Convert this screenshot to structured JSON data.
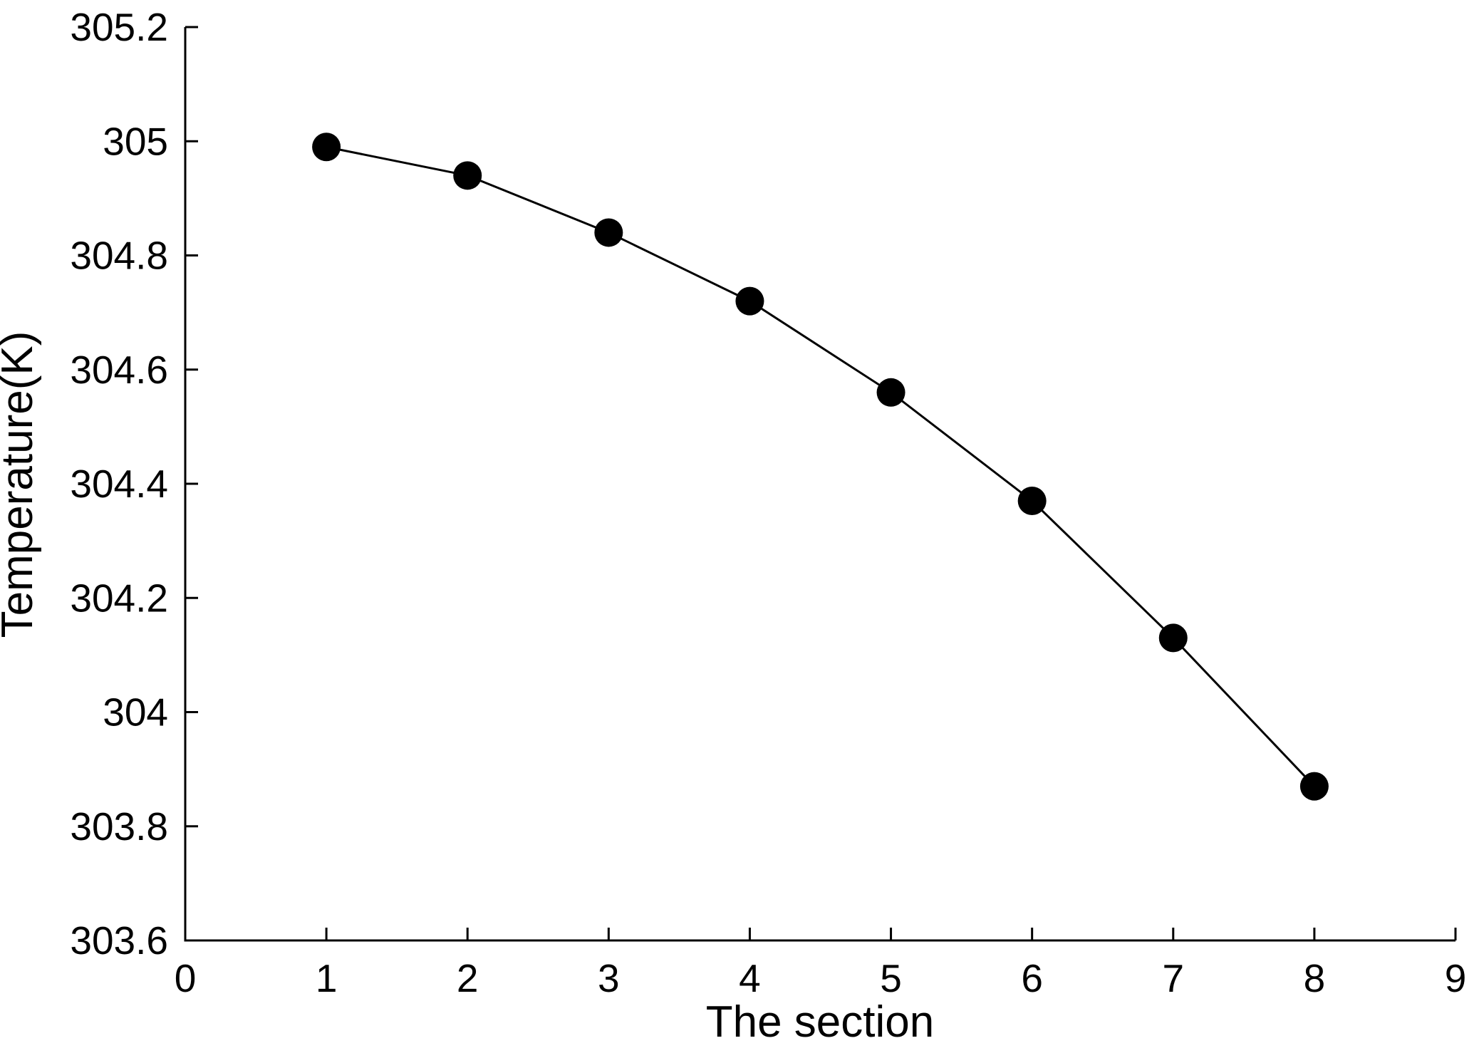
{
  "chart_data": {
    "type": "line",
    "title": "",
    "xlabel": "The section",
    "ylabel": "Temperature(K)",
    "series": [
      {
        "name": "temperature",
        "x": [
          1,
          2,
          3,
          4,
          5,
          6,
          7,
          8
        ],
        "y": [
          304.99,
          304.94,
          304.84,
          304.72,
          304.56,
          304.37,
          304.13,
          303.87
        ]
      }
    ],
    "xlim": [
      0,
      9
    ],
    "ylim": [
      303.6,
      305.2
    ],
    "xticks": {
      "values": [
        0,
        1,
        2,
        3,
        4,
        5,
        6,
        7,
        8,
        9
      ],
      "labels": [
        "0",
        "1",
        "2",
        "3",
        "4",
        "5",
        "6",
        "7",
        "8",
        "9"
      ]
    },
    "yticks": {
      "values": [
        303.6,
        303.8,
        304.0,
        304.2,
        304.4,
        304.6,
        304.8,
        305.0,
        305.2
      ],
      "labels": [
        "303.6",
        "303.8",
        "304",
        "304.2",
        "304.4",
        "304.6",
        "304.8",
        "305",
        "305.2"
      ]
    },
    "grid": false,
    "legend": null,
    "marker": "filled-circle",
    "marker_radius_px": 20,
    "colors": {
      "line": "#000000",
      "marker": "#000000",
      "axis": "#000000",
      "text": "#000000",
      "background": "#ffffff"
    }
  }
}
